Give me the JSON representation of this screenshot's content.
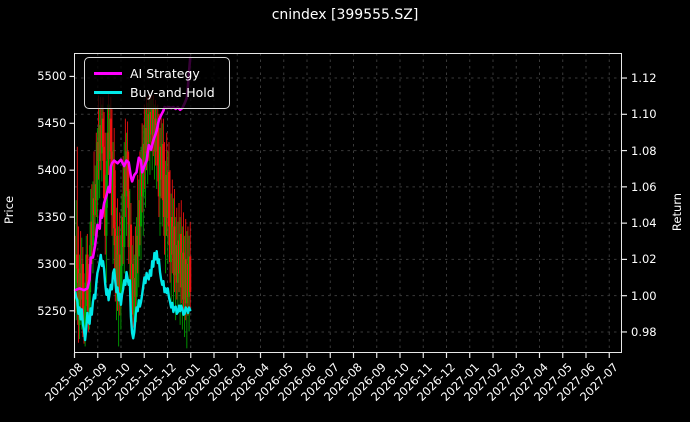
{
  "title": "cnindex [399555.SZ]",
  "legend": {
    "items": [
      {
        "label": "AI Strategy",
        "color": "#ff00ff"
      },
      {
        "label": "Buy-and-Hold",
        "color": "#00e8e8"
      }
    ]
  },
  "axes": {
    "left_label": "Price",
    "right_label": "Return",
    "price_tick_labels": [
      "5250",
      "5300",
      "5350",
      "5400",
      "5450",
      "5500"
    ],
    "return_tick_labels": [
      "0.98",
      "1.00",
      "1.02",
      "1.04",
      "1.06",
      "1.08",
      "1.10",
      "1.12"
    ]
  },
  "chart_data": {
    "type": "candlestick+line",
    "title": "cnindex [399555.SZ]",
    "legend_position": "upper left",
    "grid": {
      "visible": true,
      "style": "dashed",
      "color": "#3a3a3a"
    },
    "background": "#000000",
    "colors": {
      "up_candle": "#00a000",
      "down_candle": "#ee1111",
      "ai_strategy": "#ff00ff",
      "buy_and_hold": "#00e8e8",
      "text": "#ffffff"
    },
    "x_axis": {
      "tick_labels": [
        "2025-08",
        "2025-09",
        "2025-10",
        "2025-11",
        "2025-12",
        "2026-01",
        "2026-02",
        "2026-03",
        "2026-04",
        "2026-05",
        "2026-06",
        "2026-07",
        "2026-08",
        "2026-09",
        "2026-10",
        "2026-11",
        "2026-12",
        "2027-01",
        "2027-02",
        "2027-03",
        "2027-04",
        "2027-05",
        "2027-06",
        "2027-07"
      ],
      "data_span_months": 5,
      "trading_days": 104
    },
    "left_axis": {
      "label": "Price",
      "ticks": [
        5250,
        5300,
        5350,
        5400,
        5450,
        5500
      ],
      "range": [
        5205,
        5525
      ]
    },
    "right_axis": {
      "label": "Return",
      "ticks": [
        0.98,
        1.0,
        1.02,
        1.04,
        1.06,
        1.08,
        1.1,
        1.12
      ],
      "range": [
        0.9684,
        1.1338
      ]
    },
    "candles_ohlc": [
      [
        5272,
        5330,
        5248,
        5260
      ],
      [
        5260,
        5368,
        5240,
        5310
      ],
      [
        5310,
        5425,
        5280,
        5295
      ],
      [
        5295,
        5340,
        5216,
        5235
      ],
      [
        5235,
        5310,
        5220,
        5290
      ],
      [
        5290,
        5335,
        5250,
        5262
      ],
      [
        5262,
        5328,
        5230,
        5300
      ],
      [
        5300,
        5318,
        5222,
        5240
      ],
      [
        5240,
        5290,
        5215,
        5225
      ],
      [
        5225,
        5280,
        5212,
        5255
      ],
      [
        5255,
        5330,
        5235,
        5310
      ],
      [
        5310,
        5332,
        5250,
        5262
      ],
      [
        5262,
        5300,
        5228,
        5238
      ],
      [
        5238,
        5320,
        5230,
        5300
      ],
      [
        5300,
        5380,
        5270,
        5345
      ],
      [
        5345,
        5385,
        5300,
        5320
      ],
      [
        5320,
        5388,
        5290,
        5370
      ],
      [
        5370,
        5420,
        5330,
        5352
      ],
      [
        5352,
        5405,
        5320,
        5385
      ],
      [
        5385,
        5440,
        5350,
        5368
      ],
      [
        5368,
        5445,
        5330,
        5430
      ],
      [
        5430,
        5480,
        5390,
        5410
      ],
      [
        5410,
        5465,
        5370,
        5448
      ],
      [
        5448,
        5478,
        5400,
        5418
      ],
      [
        5418,
        5470,
        5388,
        5455
      ],
      [
        5455,
        5478,
        5410,
        5425
      ],
      [
        5425,
        5462,
        5350,
        5370
      ],
      [
        5370,
        5440,
        5310,
        5330
      ],
      [
        5330,
        5410,
        5280,
        5395
      ],
      [
        5395,
        5470,
        5360,
        5440
      ],
      [
        5440,
        5482,
        5395,
        5412
      ],
      [
        5412,
        5470,
        5378,
        5455
      ],
      [
        5455,
        5478,
        5400,
        5420
      ],
      [
        5420,
        5465,
        5330,
        5352
      ],
      [
        5352,
        5430,
        5300,
        5408
      ],
      [
        5408,
        5445,
        5320,
        5338
      ],
      [
        5338,
        5400,
        5260,
        5285
      ],
      [
        5285,
        5360,
        5240,
        5330
      ],
      [
        5330,
        5370,
        5250,
        5268
      ],
      [
        5268,
        5340,
        5212,
        5310
      ],
      [
        5310,
        5355,
        5245,
        5262
      ],
      [
        5262,
        5330,
        5230,
        5298
      ],
      [
        5298,
        5375,
        5265,
        5350
      ],
      [
        5350,
        5415,
        5300,
        5318
      ],
      [
        5318,
        5430,
        5290,
        5405
      ],
      [
        5405,
        5455,
        5350,
        5372
      ],
      [
        5372,
        5440,
        5330,
        5420
      ],
      [
        5420,
        5452,
        5360,
        5378
      ],
      [
        5378,
        5420,
        5300,
        5318
      ],
      [
        5318,
        5380,
        5260,
        5342
      ],
      [
        5342,
        5365,
        5240,
        5258
      ],
      [
        5258,
        5320,
        5225,
        5300
      ],
      [
        5300,
        5330,
        5232,
        5246
      ],
      [
        5246,
        5310,
        5228,
        5285
      ],
      [
        5285,
        5340,
        5250,
        5265
      ],
      [
        5265,
        5350,
        5238,
        5330
      ],
      [
        5330,
        5395,
        5290,
        5308
      ],
      [
        5308,
        5390,
        5275,
        5368
      ],
      [
        5368,
        5420,
        5320,
        5340
      ],
      [
        5340,
        5425,
        5305,
        5402
      ],
      [
        5402,
        5450,
        5355,
        5372
      ],
      [
        5372,
        5448,
        5330,
        5428
      ],
      [
        5428,
        5470,
        5380,
        5400
      ],
      [
        5400,
        5465,
        5360,
        5445
      ],
      [
        5445,
        5478,
        5400,
        5418
      ],
      [
        5418,
        5472,
        5385,
        5460
      ],
      [
        5460,
        5480,
        5410,
        5430
      ],
      [
        5430,
        5475,
        5395,
        5462
      ],
      [
        5462,
        5482,
        5420,
        5438
      ],
      [
        5438,
        5476,
        5400,
        5465
      ],
      [
        5465,
        5480,
        5415,
        5432
      ],
      [
        5432,
        5470,
        5390,
        5455
      ],
      [
        5455,
        5475,
        5405,
        5420
      ],
      [
        5420,
        5468,
        5380,
        5448
      ],
      [
        5448,
        5470,
        5388,
        5405
      ],
      [
        5405,
        5460,
        5350,
        5372
      ],
      [
        5372,
        5445,
        5330,
        5425
      ],
      [
        5425,
        5460,
        5370,
        5390
      ],
      [
        5390,
        5450,
        5340,
        5428
      ],
      [
        5428,
        5455,
        5350,
        5368
      ],
      [
        5368,
        5430,
        5310,
        5330
      ],
      [
        5330,
        5410,
        5290,
        5395
      ],
      [
        5395,
        5440,
        5330,
        5350
      ],
      [
        5350,
        5420,
        5300,
        5398
      ],
      [
        5398,
        5430,
        5320,
        5340
      ],
      [
        5340,
        5400,
        5280,
        5302
      ],
      [
        5302,
        5375,
        5260,
        5350
      ],
      [
        5350,
        5390,
        5290,
        5310
      ],
      [
        5310,
        5370,
        5255,
        5340
      ],
      [
        5340,
        5380,
        5270,
        5288
      ],
      [
        5288,
        5350,
        5240,
        5320
      ],
      [
        5320,
        5360,
        5262,
        5280
      ],
      [
        5280,
        5345,
        5248,
        5325
      ],
      [
        5325,
        5365,
        5270,
        5290
      ],
      [
        5290,
        5350,
        5235,
        5332
      ],
      [
        5332,
        5368,
        5258,
        5275
      ],
      [
        5275,
        5340,
        5230,
        5312
      ],
      [
        5312,
        5355,
        5245,
        5262
      ],
      [
        5262,
        5330,
        5222,
        5305
      ],
      [
        5305,
        5348,
        5240,
        5258
      ],
      [
        5258,
        5335,
        5210,
        5300
      ],
      [
        5300,
        5340,
        5245,
        5265
      ],
      [
        5265,
        5330,
        5228,
        5308
      ],
      [
        5308,
        5345,
        5250,
        5270
      ]
    ],
    "series": [
      {
        "name": "AI Strategy",
        "axis": "return",
        "color": "#ff00ff",
        "points_day_return": [
          [
            0,
            1.003
          ],
          [
            4,
            1.004
          ],
          [
            8,
            1.003
          ],
          [
            11,
            1.004
          ],
          [
            13,
            1.009
          ],
          [
            14,
            1.021
          ],
          [
            16,
            1.021
          ],
          [
            18,
            1.028
          ],
          [
            20,
            1.039
          ],
          [
            22,
            1.037
          ],
          [
            23,
            1.047
          ],
          [
            24,
            1.043
          ],
          [
            26,
            1.051
          ],
          [
            28,
            1.055
          ],
          [
            30,
            1.06
          ],
          [
            31,
            1.057
          ],
          [
            32,
            1.071
          ],
          [
            33,
            1.073
          ],
          [
            35,
            1.0745
          ],
          [
            38,
            1.073
          ],
          [
            41,
            1.075
          ],
          [
            44,
            1.0715
          ],
          [
            46,
            1.0745
          ],
          [
            48,
            1.0735
          ],
          [
            50,
            1.0655
          ],
          [
            51,
            1.063
          ],
          [
            53,
            1.0665
          ],
          [
            55,
            1.068
          ],
          [
            57,
            1.076
          ],
          [
            59,
            1.0745
          ],
          [
            60,
            1.068
          ],
          [
            62,
            1.0715
          ],
          [
            64,
            1.0745
          ],
          [
            66,
            1.083
          ],
          [
            68,
            1.0805
          ],
          [
            70,
            1.0855
          ],
          [
            72,
            1.089
          ],
          [
            73,
            1.091
          ],
          [
            75,
            1.097
          ],
          [
            77,
            1.0995
          ],
          [
            79,
            1.102
          ],
          [
            80,
            1.104
          ],
          [
            82,
            1.1035
          ],
          [
            84,
            1.104
          ],
          [
            86,
            1.1035
          ],
          [
            88,
            1.104
          ],
          [
            90,
            1.103
          ],
          [
            92,
            1.104
          ],
          [
            94,
            1.1025
          ],
          [
            96,
            1.1035
          ],
          [
            98,
            1.106
          ],
          [
            100,
            1.109
          ],
          [
            101,
            1.116
          ],
          [
            102,
            1.124
          ],
          [
            103,
            1.131
          ]
        ]
      },
      {
        "name": "Buy-and-Hold",
        "axis": "return",
        "color": "#00e8e8",
        "values_daily_return": [
          1.002,
          0.999,
          0.9975,
          0.99,
          0.9935,
          0.987,
          0.9925,
          0.9845,
          0.981,
          0.9755,
          0.9815,
          0.9905,
          0.9855,
          0.9845,
          0.993,
          0.9895,
          0.9965,
          1.0005,
          0.9985,
          1.007,
          1.0125,
          1.015,
          1.0185,
          1.0225,
          1.0165,
          1.019,
          1.0145,
          1.0065,
          1.0005,
          1.0035,
          0.9975,
          1.0015,
          1.006,
          1.0035,
          1.0125,
          1.0145,
          1.008,
          1.002,
          1.0045,
          0.9975,
          1.001,
          0.995,
          1.0005,
          1.0035,
          1.0085,
          1.006,
          1.013,
          1.0095,
          1.006,
          1.0085,
          0.9885,
          0.9795,
          0.9765,
          0.98,
          0.988,
          0.9935,
          0.9915,
          0.9975,
          0.994,
          0.9965,
          1.0005,
          1.005,
          1.01,
          1.007,
          1.0125,
          1.01,
          1.009,
          1.014,
          1.011,
          1.019,
          1.016,
          1.0235,
          1.02,
          1.0245,
          1.018,
          1.02,
          1.013,
          1.009,
          1.006,
          1.008,
          1.002,
          1.004,
          1.0015,
          1.004,
          0.999,
          0.9965,
          0.9935,
          0.996,
          0.991,
          0.9935,
          0.994,
          0.99,
          0.991,
          0.9945,
          0.9915,
          0.9945,
          0.9925,
          0.9895,
          0.99,
          0.9935,
          0.9925,
          0.9905,
          0.9935,
          0.992
        ]
      }
    ]
  }
}
